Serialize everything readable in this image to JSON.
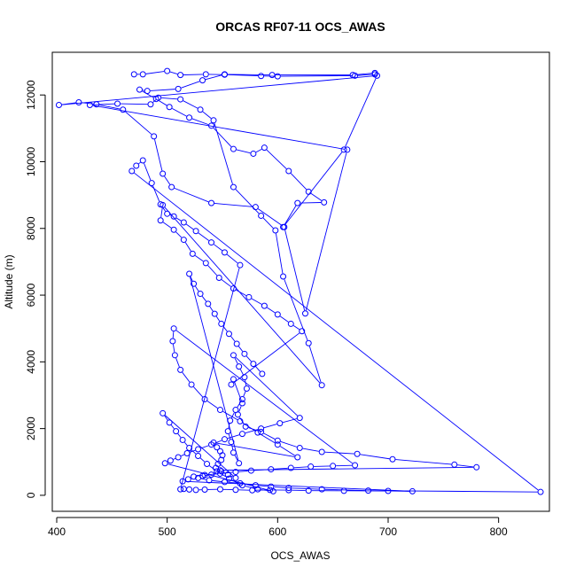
{
  "chart_data": {
    "type": "line",
    "title": "ORCAS RF07-11 OCS_AWAS",
    "xlabel": "OCS_AWAS",
    "ylabel": "Altitude (m)",
    "xlim": [
      396,
      846
    ],
    "ylim": [
      -480,
      13280
    ],
    "xticks": [
      400,
      500,
      600,
      700,
      800
    ],
    "yticks": [
      0,
      2000,
      4000,
      6000,
      8000,
      10000,
      12000
    ],
    "grid": false,
    "marker": "open-circle",
    "line_color": "#0000ff",
    "series": [
      {
        "x": [
          470,
          478,
          500,
          512,
          535,
          552,
          585,
          600,
          670,
          688,
          688,
          668,
          595,
          552,
          532,
          510,
          482,
          475,
          490,
          502,
          520,
          540,
          560,
          578,
          588,
          610,
          628,
          642,
          618,
          605,
          660,
          690,
          402,
          420,
          436,
          460,
          488,
          496,
          504,
          540,
          580,
          606,
          625,
          663,
          430,
          455,
          485,
          492,
          512,
          530,
          542,
          560,
          585,
          598,
          605,
          628,
          640,
          496,
          494,
          506,
          515,
          523,
          535,
          547,
          560,
          574,
          588,
          600,
          612,
          622,
          558,
          560,
          568,
          564,
          571,
          585,
          600,
          620,
          640,
          672,
          704,
          760,
          780,
          548,
          540,
          532,
          528,
          538,
          552,
          566,
          580,
          594,
          610,
          640,
          682,
          838,
          468,
          472,
          478,
          486,
          494,
          500,
          506,
          515,
          526,
          540,
          552,
          566,
          512,
          515,
          520,
          526,
          534,
          548,
          562,
          577,
          593,
          610,
          628,
          660,
          700,
          722,
          514,
          519,
          524,
          534,
          548,
          562,
          576,
          594,
          612,
          630,
          650,
          670,
          506,
          505,
          507,
          512,
          522,
          534,
          548,
          566,
          582,
          600,
          618,
          542,
          545,
          548,
          550,
          549,
          546,
          544,
          549,
          555,
          562,
          496,
          502,
          508,
          514,
          520,
          528,
          536,
          545,
          556,
          568,
          582,
          596,
          498,
          503,
          510,
          518,
          528,
          540,
          552,
          568,
          585,
          602,
          620,
          560,
          565,
          570,
          572,
          568,
          562,
          557,
          555,
          558,
          560,
          565,
          520,
          524,
          530,
          537,
          543,
          549,
          556,
          563,
          570,
          578,
          586
        ],
        "y": [
          12620,
          12620,
          12720,
          12600,
          12620,
          12610,
          12570,
          12560,
          12580,
          12620,
          12660,
          12600,
          12600,
          12620,
          12440,
          12180,
          12120,
          12160,
          11880,
          11640,
          11320,
          11080,
          10380,
          10240,
          10420,
          9720,
          9100,
          8780,
          8760,
          8040,
          10360,
          12580,
          11700,
          11780,
          11720,
          11560,
          10760,
          9640,
          9240,
          8760,
          8640,
          8040,
          5450,
          10360,
          11700,
          11740,
          11720,
          11920,
          11870,
          11560,
          11240,
          9240,
          8380,
          7940,
          6560,
          4560,
          3300,
          8700,
          8240,
          7960,
          7660,
          7240,
          6960,
          6520,
          6200,
          5940,
          5680,
          5420,
          5140,
          4920,
          3320,
          3480,
          2760,
          2420,
          2060,
          1900,
          1640,
          1420,
          1300,
          1240,
          1080,
          920,
          840,
          750,
          620,
          580,
          520,
          450,
          400,
          360,
          300,
          260,
          220,
          180,
          140,
          100,
          9720,
          9880,
          10040,
          9360,
          8720,
          8440,
          8360,
          8180,
          7920,
          7580,
          7280,
          6900,
          180,
          190,
          175,
          160,
          170,
          180,
          165,
          150,
          160,
          155,
          140,
          135,
          130,
          120,
          420,
          480,
          560,
          610,
          650,
          700,
          740,
          780,
          820,
          860,
          880,
          900,
          5000,
          4620,
          4200,
          3760,
          3320,
          2880,
          2560,
          2220,
          1880,
          1520,
          1140,
          1580,
          1440,
          1320,
          1200,
          1060,
          940,
          820,
          720,
          620,
          520,
          2460,
          2180,
          1920,
          1660,
          1420,
          1180,
          940,
          720,
          500,
          300,
          180,
          120,
          960,
          1040,
          1140,
          1260,
          1380,
          1520,
          1680,
          1840,
          2000,
          2160,
          2320,
          4200,
          3860,
          3540,
          3200,
          2880,
          2560,
          2240,
          1920,
          1600,
          1280,
          960,
          6640,
          6340,
          6040,
          5740,
          5440,
          5140,
          4840,
          4540,
          4240,
          3940,
          3640
        ]
      }
    ]
  }
}
